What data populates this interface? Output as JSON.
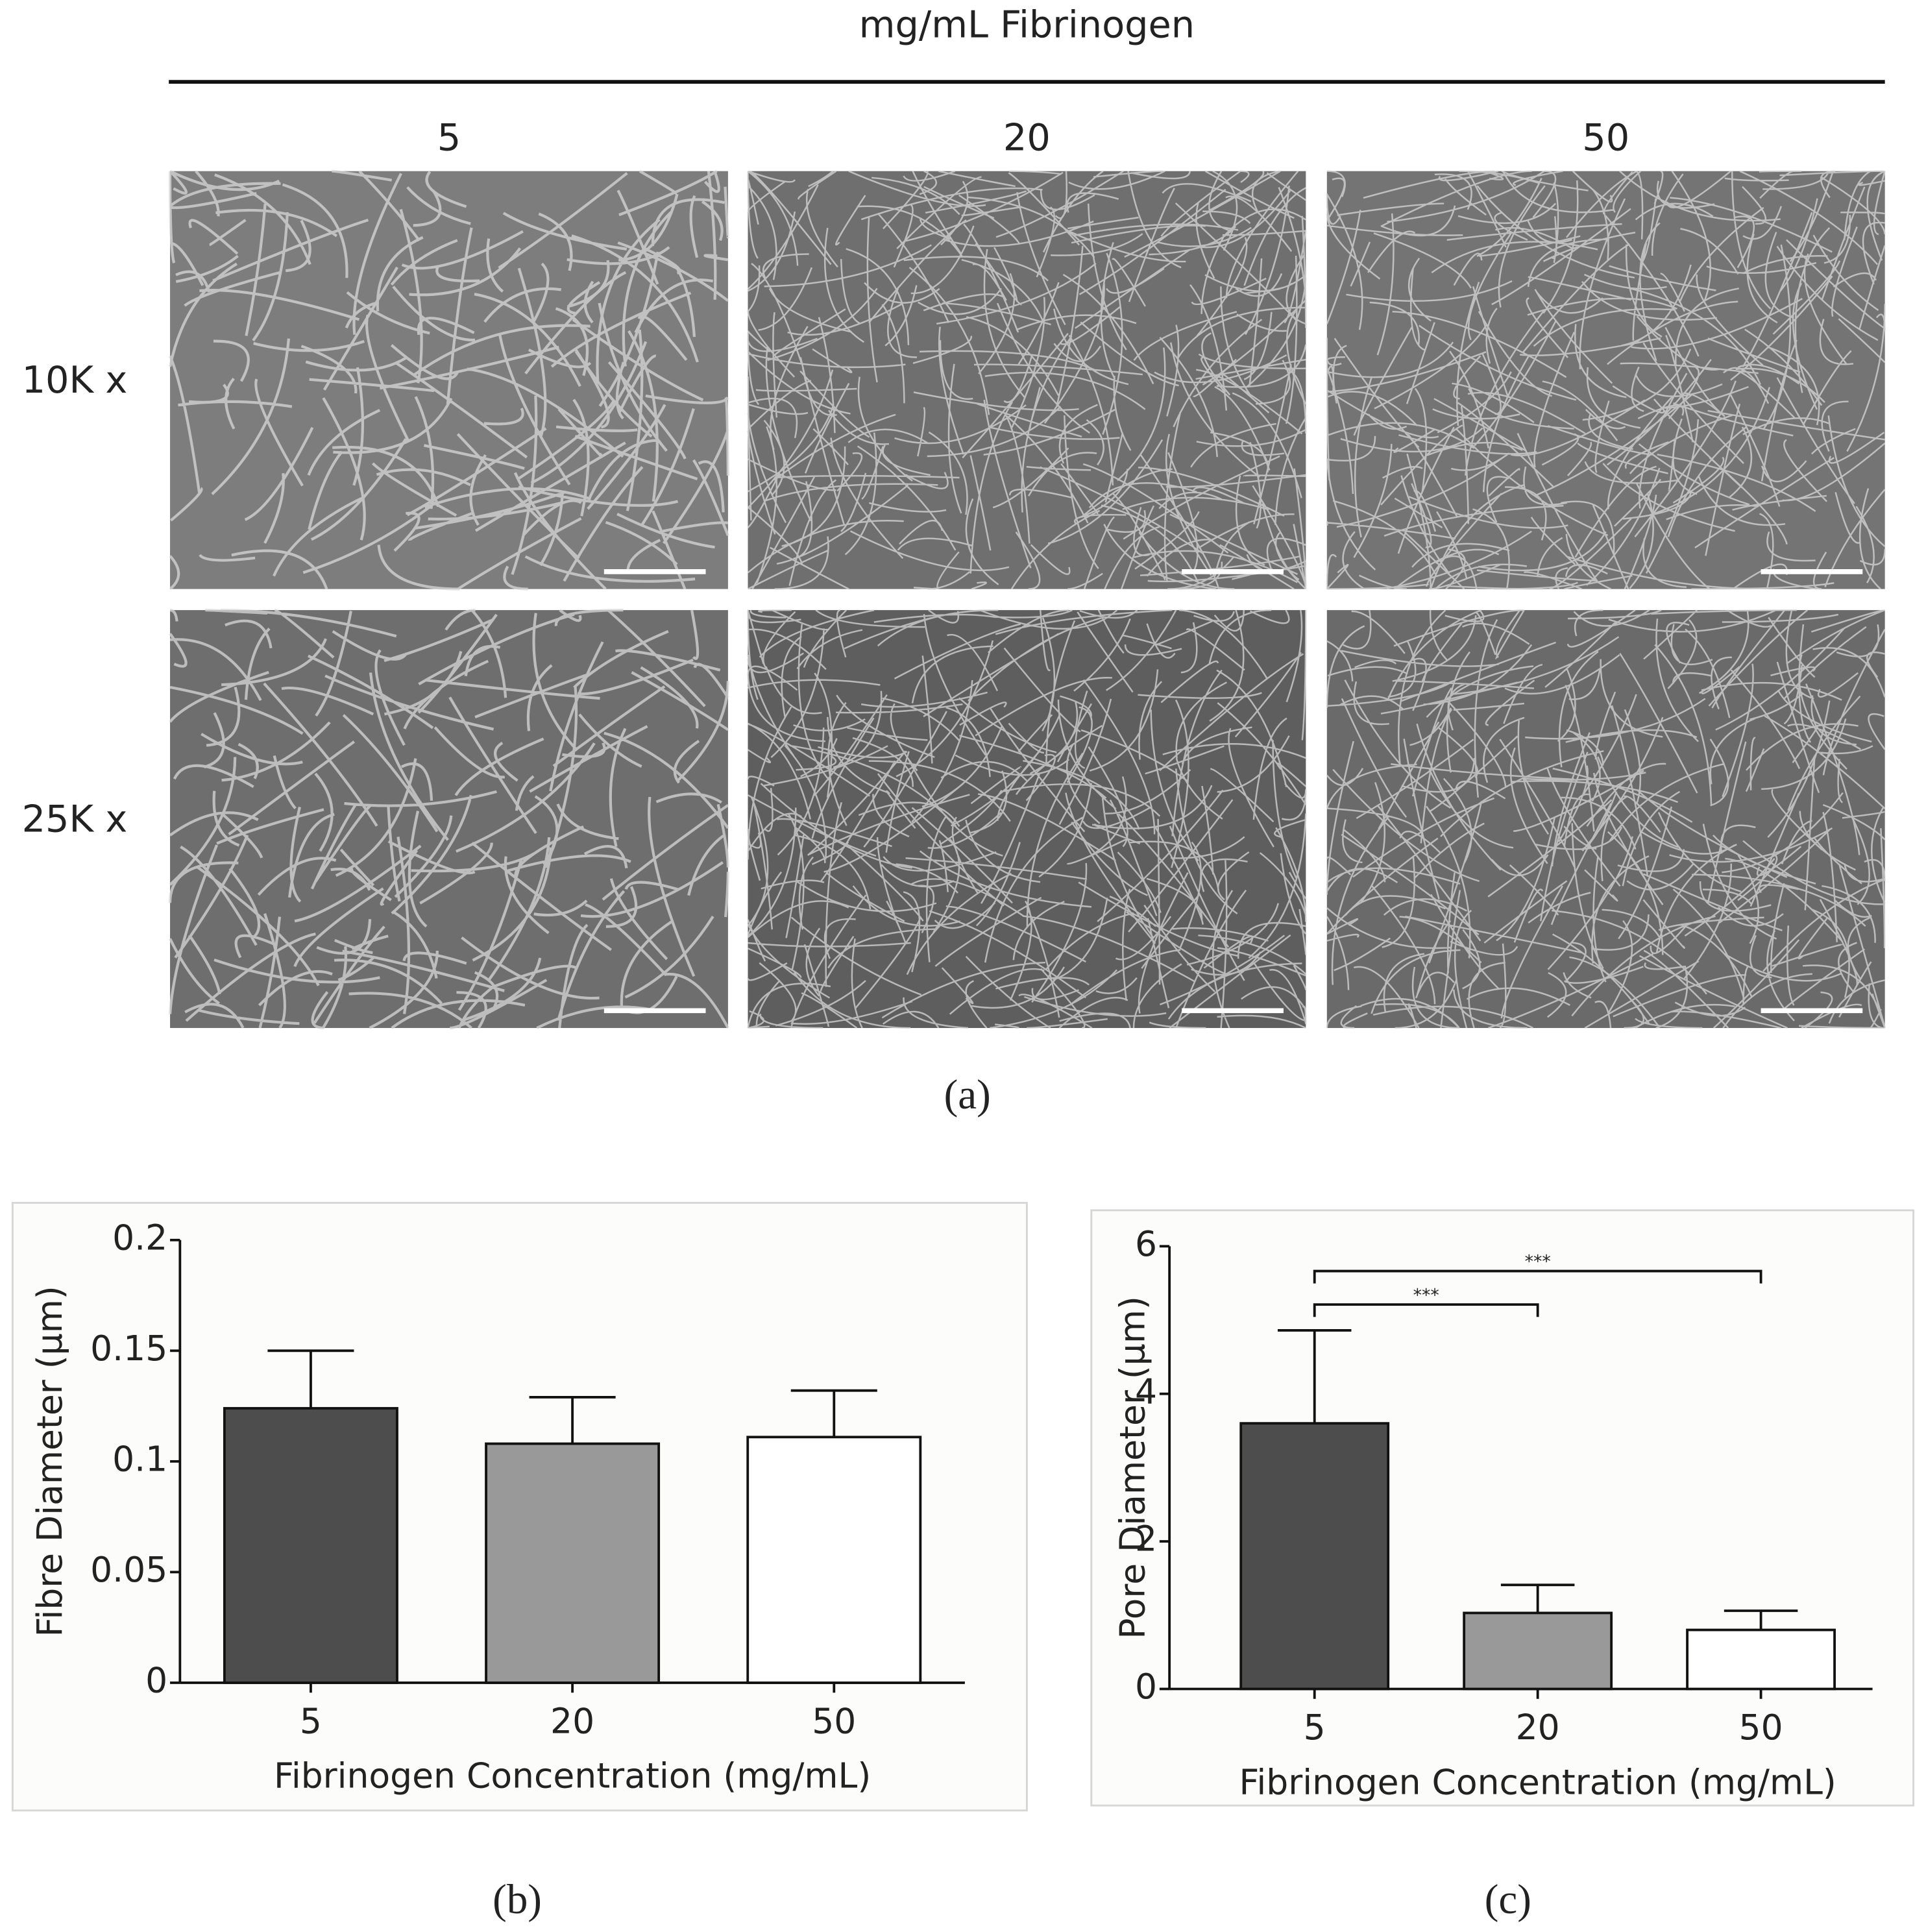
{
  "panel_a": {
    "label": "(a)",
    "title": "mg/mL Fibrinogen",
    "columns": [
      "5",
      "20",
      "50"
    ],
    "rows": [
      "10K x",
      "25K x"
    ]
  },
  "chart_data": [
    {
      "type": "bar",
      "panel_label": "(b)",
      "y_label": "Fibre Diameter (µm)",
      "x_label": "Fibrinogen Concentration (mg/mL)",
      "categories": [
        "5",
        "20",
        "50"
      ],
      "values": [
        0.124,
        0.108,
        0.111
      ],
      "errors": [
        0.026,
        0.021,
        0.021
      ],
      "colors": [
        "#4d4d4d",
        "#999999",
        "#ffffff"
      ],
      "ylim": [
        0,
        0.2
      ],
      "yticks": [
        0,
        0.05,
        0.1,
        0.15,
        0.2
      ]
    },
    {
      "type": "bar",
      "panel_label": "(c)",
      "y_label": "Pore Diameter (µm)",
      "x_label": "Fibrinogen Concentration (mg/mL)",
      "categories": [
        "5",
        "20",
        "50"
      ],
      "values": [
        3.6,
        1.03,
        0.8
      ],
      "errors": [
        1.26,
        0.38,
        0.26
      ],
      "colors": [
        "#4d4d4d",
        "#999999",
        "#ffffff"
      ],
      "ylim": [
        0,
        6
      ],
      "yticks": [
        0,
        2,
        4,
        6
      ],
      "annotations": [
        {
          "text": "***",
          "between": [
            "5",
            "20"
          ]
        },
        {
          "text": "***",
          "between": [
            "5",
            "50"
          ]
        }
      ]
    }
  ]
}
